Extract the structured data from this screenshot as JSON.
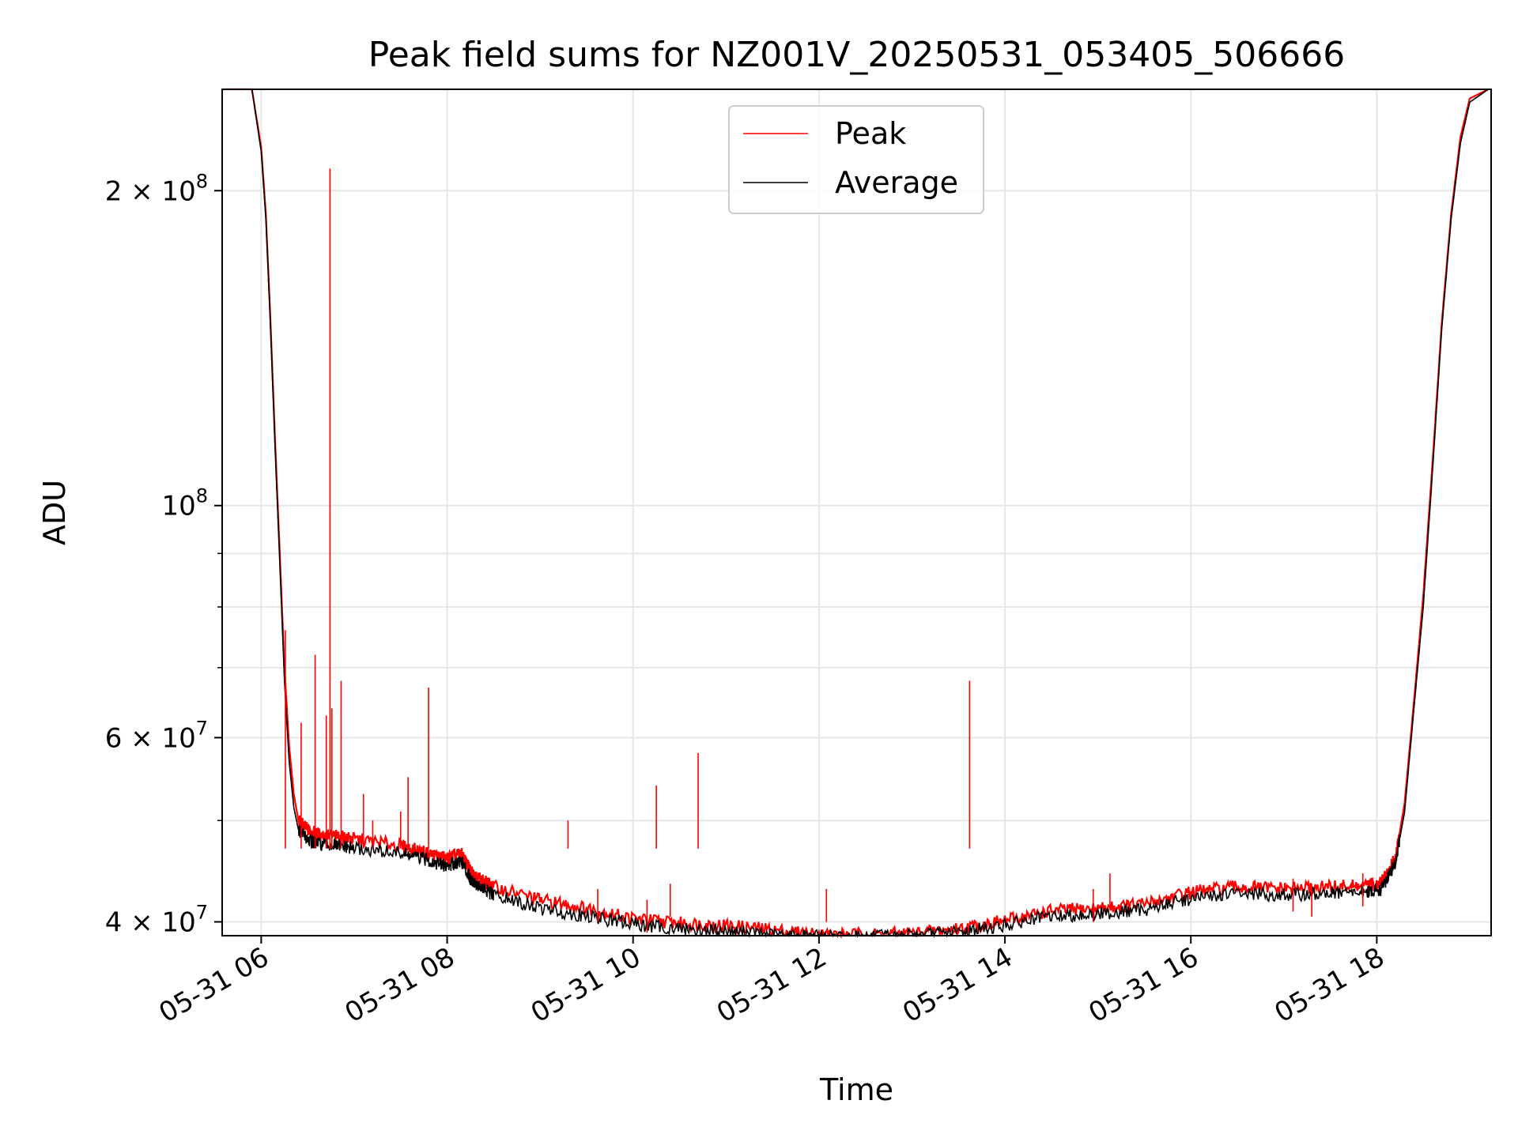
{
  "chart_data": {
    "type": "line",
    "title": "Peak field sums for NZ001V_20250531_053405_506666",
    "xlabel": "Time",
    "ylabel": "ADU",
    "x_tick_labels": [
      "05-31 06",
      "05-31 08",
      "05-31 10",
      "05-31 12",
      "05-31 14",
      "05-31 16",
      "05-31 18"
    ],
    "x_tick_hours": [
      6,
      8,
      10,
      12,
      14,
      16,
      18
    ],
    "xlim_hours": [
      5.58,
      19.23
    ],
    "y_scale": "log",
    "ylim": [
      38800000,
      250000000
    ],
    "y_major_ticks": [
      {
        "value": 40000000,
        "mantissa": "4",
        "exp": "7"
      },
      {
        "value": 60000000,
        "mantissa": "6",
        "exp": "7"
      },
      {
        "value": 100000000,
        "mantissa": "",
        "exp": "8"
      },
      {
        "value": 200000000,
        "mantissa": "2",
        "exp": "8"
      }
    ],
    "y_minor_ticks": [
      50000000,
      70000000,
      80000000,
      90000000
    ],
    "grid": true,
    "legend_position": "top-center",
    "series": [
      {
        "name": "Peak",
        "color": "#ff0000",
        "x_hours": [
          5.6,
          5.9,
          6.0,
          6.05,
          6.1,
          6.15,
          6.2,
          6.25,
          6.3,
          6.35,
          6.4,
          6.5,
          6.6,
          6.8,
          7.0,
          7.5,
          7.8,
          8.0,
          8.15,
          8.25,
          8.35,
          8.5,
          9.0,
          9.5,
          10.0,
          10.5,
          11.0,
          11.5,
          12.0,
          12.5,
          13.0,
          13.5,
          14.0,
          14.5,
          15.0,
          15.5,
          16.0,
          16.5,
          17.0,
          17.5,
          17.9,
          18.05,
          18.2,
          18.3,
          18.4,
          18.5,
          18.6,
          18.7,
          18.8,
          18.9,
          19.0,
          19.2
        ],
        "y": [
          250000000,
          250000000,
          220000000,
          190000000,
          150000000,
          115000000,
          90000000,
          70000000,
          59000000,
          53000000,
          50000000,
          49000000,
          48500000,
          48300000,
          48000000,
          47300000,
          46500000,
          46000000,
          46500000,
          44800000,
          44000000,
          43200000,
          42000000,
          41200000,
          40300000,
          39900000,
          39700000,
          39300000,
          38900000,
          38900000,
          39000000,
          39400000,
          40100000,
          41000000,
          41200000,
          41600000,
          42700000,
          43200000,
          43000000,
          43200000,
          43300000,
          43600000,
          46000000,
          52000000,
          65000000,
          82000000,
          110000000,
          150000000,
          190000000,
          225000000,
          245000000,
          250000000
        ]
      },
      {
        "name": "Average",
        "color": "#000000",
        "x_hours": [
          5.6,
          5.9,
          6.0,
          6.05,
          6.1,
          6.15,
          6.2,
          6.25,
          6.3,
          6.35,
          6.4,
          6.5,
          6.6,
          6.8,
          7.0,
          7.5,
          7.8,
          8.0,
          8.15,
          8.25,
          8.35,
          8.5,
          9.0,
          9.5,
          10.0,
          10.5,
          11.0,
          11.5,
          12.0,
          12.5,
          13.0,
          13.5,
          14.0,
          14.5,
          15.0,
          15.5,
          16.0,
          16.5,
          17.0,
          17.5,
          17.9,
          18.05,
          18.2,
          18.3,
          18.4,
          18.5,
          18.6,
          18.7,
          18.8,
          18.9,
          19.0,
          19.2
        ],
        "y": [
          250000000,
          250000000,
          218000000,
          188000000,
          148000000,
          113000000,
          88000000,
          68000000,
          57000000,
          51500000,
          49000000,
          48000000,
          47500000,
          47300000,
          47000000,
          46500000,
          45800000,
          45200000,
          45800000,
          44000000,
          43200000,
          42400000,
          41200000,
          40500000,
          39800000,
          39400000,
          39200000,
          38900000,
          38700000,
          38700000,
          38800000,
          39100000,
          39700000,
          40500000,
          40700000,
          41100000,
          42100000,
          42600000,
          42400000,
          42600000,
          42700000,
          43000000,
          45500000,
          51000000,
          64000000,
          80000000,
          108000000,
          148000000,
          188000000,
          222000000,
          243000000,
          250000000
        ]
      }
    ],
    "spikes": [
      {
        "x_hours": 6.26,
        "y": 76000000
      },
      {
        "x_hours": 6.43,
        "y": 62000000
      },
      {
        "x_hours": 6.58,
        "y": 72000000
      },
      {
        "x_hours": 6.7,
        "y": 63000000
      },
      {
        "x_hours": 6.74,
        "y": 210000000
      },
      {
        "x_hours": 6.76,
        "y": 64000000
      },
      {
        "x_hours": 6.86,
        "y": 68000000
      },
      {
        "x_hours": 7.1,
        "y": 53000000
      },
      {
        "x_hours": 7.2,
        "y": 50000000
      },
      {
        "x_hours": 7.5,
        "y": 51000000
      },
      {
        "x_hours": 7.58,
        "y": 55000000
      },
      {
        "x_hours": 7.8,
        "y": 67000000
      },
      {
        "x_hours": 9.3,
        "y": 50000000
      },
      {
        "x_hours": 9.62,
        "y": 43000000
      },
      {
        "x_hours": 10.15,
        "y": 42000000
      },
      {
        "x_hours": 10.25,
        "y": 54000000
      },
      {
        "x_hours": 10.4,
        "y": 43500000
      },
      {
        "x_hours": 10.7,
        "y": 58000000
      },
      {
        "x_hours": 12.08,
        "y": 43000000
      },
      {
        "x_hours": 13.62,
        "y": 68000000
      },
      {
        "x_hours": 14.95,
        "y": 43000000
      },
      {
        "x_hours": 15.13,
        "y": 44500000
      },
      {
        "x_hours": 17.1,
        "y": 44000000
      },
      {
        "x_hours": 17.3,
        "y": 43500000
      },
      {
        "x_hours": 17.85,
        "y": 44500000
      }
    ]
  }
}
